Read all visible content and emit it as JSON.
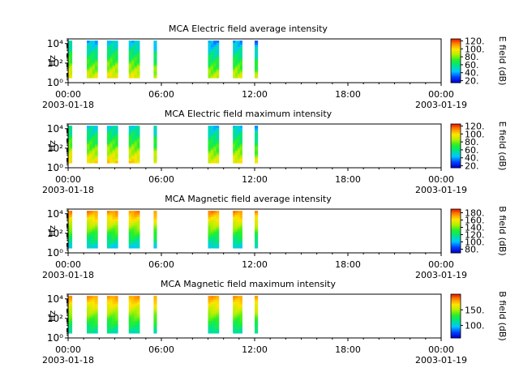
{
  "chart_data": [
    {
      "type": "heatmap",
      "title": "MCA  Electric field average intensity",
      "ylabel": "Hz",
      "yscale": "log",
      "ylim": [
        1,
        30000
      ],
      "ytick_values": [
        1,
        100,
        10000
      ],
      "ytick_labels": [
        "10⁰",
        "10²",
        "10⁴"
      ],
      "xlim": [
        0,
        24
      ],
      "xticks": [
        0,
        6,
        12,
        18,
        24
      ],
      "xtick_labels": [
        "00:00",
        "06:00",
        "12:00",
        "18:00",
        "00:00"
      ],
      "xdate_labels": [
        "2003-01-18",
        "",
        "",
        "",
        "2003-01-19"
      ],
      "colorbar": {
        "label": "E field (dB)",
        "range": [
          15,
          125
        ],
        "ticks": [
          20,
          40,
          60,
          80,
          100,
          120
        ],
        "tick_labels": [
          "20.",
          "40.",
          "60.",
          "80.",
          "100.",
          "120."
        ]
      },
      "colormap": "rainbow",
      "segments": [
        {
          "start": 0.0,
          "end": 0.25,
          "mean": 78,
          "top_freq": 20000,
          "bottom_freq": 3
        },
        {
          "start": 1.2,
          "end": 1.9,
          "mean": 72,
          "top_freq": 20000,
          "bottom_freq": 3
        },
        {
          "start": 2.5,
          "end": 3.2,
          "mean": 76,
          "top_freq": 20000,
          "bottom_freq": 3
        },
        {
          "start": 3.9,
          "end": 4.6,
          "mean": 75,
          "top_freq": 20000,
          "bottom_freq": 3
        },
        {
          "start": 5.5,
          "end": 5.7,
          "mean": 70,
          "top_freq": 20000,
          "bottom_freq": 3
        },
        {
          "start": 9.0,
          "end": 9.7,
          "mean": 68,
          "top_freq": 20000,
          "bottom_freq": 3
        },
        {
          "start": 10.6,
          "end": 11.2,
          "mean": 70,
          "top_freq": 20000,
          "bottom_freq": 3
        },
        {
          "start": 12.0,
          "end": 12.2,
          "mean": 66,
          "top_freq": 20000,
          "bottom_freq": 3
        }
      ]
    },
    {
      "type": "heatmap",
      "title": "MCA  Electric field maximum intensity",
      "ylabel": "Hz",
      "yscale": "log",
      "ylim": [
        1,
        30000
      ],
      "ytick_values": [
        1,
        100,
        10000
      ],
      "ytick_labels": [
        "10⁰",
        "10²",
        "10⁴"
      ],
      "xlim": [
        0,
        24
      ],
      "xticks": [
        0,
        6,
        12,
        18,
        24
      ],
      "xtick_labels": [
        "00:00",
        "06:00",
        "12:00",
        "18:00",
        "00:00"
      ],
      "xdate_labels": [
        "2003-01-18",
        "",
        "",
        "",
        "2003-01-19"
      ],
      "colorbar": {
        "label": "E field (dB)",
        "range": [
          15,
          125
        ],
        "ticks": [
          20,
          40,
          60,
          80,
          100,
          120
        ],
        "tick_labels": [
          "20.",
          "40.",
          "60.",
          "80.",
          "100.",
          "120."
        ]
      },
      "colormap": "rainbow",
      "segments": [
        {
          "start": 0.0,
          "end": 0.25,
          "mean": 82,
          "top_freq": 20000,
          "bottom_freq": 3
        },
        {
          "start": 1.2,
          "end": 1.9,
          "mean": 78,
          "top_freq": 20000,
          "bottom_freq": 3
        },
        {
          "start": 2.5,
          "end": 3.2,
          "mean": 80,
          "top_freq": 20000,
          "bottom_freq": 3
        },
        {
          "start": 3.9,
          "end": 4.6,
          "mean": 80,
          "top_freq": 20000,
          "bottom_freq": 3
        },
        {
          "start": 5.5,
          "end": 5.7,
          "mean": 76,
          "top_freq": 20000,
          "bottom_freq": 3
        },
        {
          "start": 9.0,
          "end": 9.7,
          "mean": 74,
          "top_freq": 20000,
          "bottom_freq": 3
        },
        {
          "start": 10.6,
          "end": 11.2,
          "mean": 76,
          "top_freq": 20000,
          "bottom_freq": 3
        },
        {
          "start": 12.0,
          "end": 12.2,
          "mean": 72,
          "top_freq": 20000,
          "bottom_freq": 3
        }
      ]
    },
    {
      "type": "heatmap",
      "title": "MCA  Magnetic field average intensity",
      "ylabel": "Hz",
      "yscale": "log",
      "ylim": [
        1,
        30000
      ],
      "ytick_values": [
        1,
        100,
        10000
      ],
      "ytick_labels": [
        "10⁰",
        "10²",
        "10⁴"
      ],
      "xlim": [
        0,
        24
      ],
      "xticks": [
        0,
        6,
        12,
        18,
        24
      ],
      "xtick_labels": [
        "00:00",
        "06:00",
        "12:00",
        "18:00",
        "00:00"
      ],
      "xdate_labels": [
        "2003-01-18",
        "",
        "",
        "",
        "2003-01-19"
      ],
      "colorbar": {
        "label": "B field (dB)",
        "range": [
          70,
          190
        ],
        "ticks": [
          80,
          100,
          120,
          140,
          160,
          180
        ],
        "tick_labels": [
          "80.",
          "100.",
          "120.",
          "140.",
          "160.",
          "180."
        ]
      },
      "colormap": "rainbow",
      "segments": [
        {
          "start": 0.0,
          "end": 0.25,
          "mean": 115,
          "top_freq": 20000,
          "bottom_freq": 3
        },
        {
          "start": 1.2,
          "end": 1.9,
          "mean": 115,
          "top_freq": 20000,
          "bottom_freq": 3
        },
        {
          "start": 2.5,
          "end": 3.2,
          "mean": 115,
          "top_freq": 20000,
          "bottom_freq": 3
        },
        {
          "start": 3.9,
          "end": 4.6,
          "mean": 115,
          "top_freq": 20000,
          "bottom_freq": 3
        },
        {
          "start": 5.5,
          "end": 5.7,
          "mean": 115,
          "top_freq": 20000,
          "bottom_freq": 3
        },
        {
          "start": 9.0,
          "end": 9.7,
          "mean": 115,
          "top_freq": 20000,
          "bottom_freq": 3
        },
        {
          "start": 10.6,
          "end": 11.2,
          "mean": 115,
          "top_freq": 20000,
          "bottom_freq": 3
        },
        {
          "start": 12.0,
          "end": 12.2,
          "mean": 115,
          "top_freq": 20000,
          "bottom_freq": 3
        }
      ]
    },
    {
      "type": "heatmap",
      "title": "MCA  Magnetic field maximum intensity",
      "ylabel": "Hz",
      "yscale": "log",
      "ylim": [
        1,
        30000
      ],
      "ytick_values": [
        1,
        100,
        10000
      ],
      "ytick_labels": [
        "10⁰",
        "10²",
        "10⁴"
      ],
      "xlim": [
        0,
        24
      ],
      "xticks": [
        0,
        6,
        12,
        18,
        24
      ],
      "xtick_labels": [
        "00:00",
        "06:00",
        "12:00",
        "18:00",
        "00:00"
      ],
      "xdate_labels": [
        "2003-01-18",
        "",
        "",
        "",
        "2003-01-19"
      ],
      "colorbar": {
        "label": "B field (dB)",
        "range": [
          60,
          200
        ],
        "ticks": [
          100,
          150
        ],
        "tick_labels": [
          "100.",
          "150."
        ]
      },
      "colormap": "rainbow",
      "segments": [
        {
          "start": 0.0,
          "end": 0.25,
          "mean": 120,
          "top_freq": 20000,
          "bottom_freq": 3
        },
        {
          "start": 1.2,
          "end": 1.9,
          "mean": 120,
          "top_freq": 20000,
          "bottom_freq": 3
        },
        {
          "start": 2.5,
          "end": 3.2,
          "mean": 120,
          "top_freq": 20000,
          "bottom_freq": 3
        },
        {
          "start": 3.9,
          "end": 4.6,
          "mean": 120,
          "top_freq": 20000,
          "bottom_freq": 3
        },
        {
          "start": 5.5,
          "end": 5.7,
          "mean": 120,
          "top_freq": 20000,
          "bottom_freq": 3
        },
        {
          "start": 9.0,
          "end": 9.7,
          "mean": 120,
          "top_freq": 20000,
          "bottom_freq": 3
        },
        {
          "start": 10.6,
          "end": 11.2,
          "mean": 120,
          "top_freq": 20000,
          "bottom_freq": 3
        },
        {
          "start": 12.0,
          "end": 12.2,
          "mean": 120,
          "top_freq": 20000,
          "bottom_freq": 3
        }
      ]
    }
  ]
}
